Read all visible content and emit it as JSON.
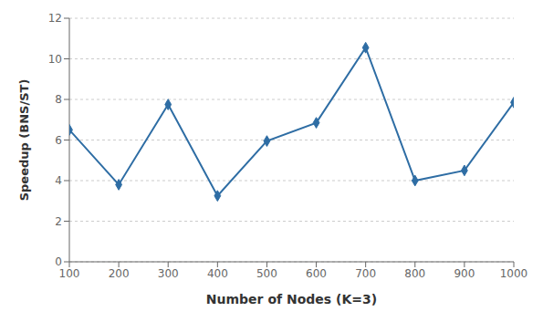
{
  "chart_data": {
    "type": "line",
    "x": [
      100,
      200,
      300,
      400,
      500,
      600,
      700,
      800,
      900,
      1000
    ],
    "values": [
      6.5,
      3.8,
      7.75,
      3.25,
      5.95,
      6.85,
      10.55,
      4.0,
      4.5,
      7.85
    ],
    "xlabel": "Number of Nodes (K=3)",
    "ylabel": "Speedup (BNS/ST)",
    "xlim": [
      100,
      1000
    ],
    "ylim": [
      0,
      12
    ],
    "xticks": [
      100,
      200,
      300,
      400,
      500,
      600,
      700,
      800,
      900,
      1000
    ],
    "yticks": [
      0,
      2,
      4,
      6,
      8,
      10,
      12
    ],
    "color": "#2E6DA4",
    "marker": "diamond",
    "grid": "y"
  }
}
